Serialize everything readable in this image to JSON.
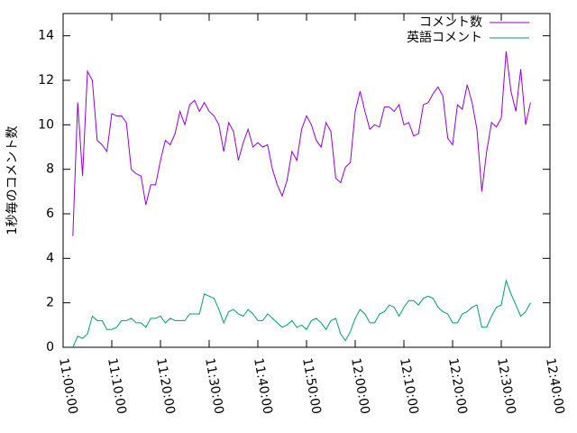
{
  "chart_data": {
    "type": "line",
    "ylabel": "1秒毎のコメント数",
    "x": [
      "11:02:00",
      "11:03:00",
      "11:04:00",
      "11:05:00",
      "11:06:00",
      "11:07:00",
      "11:08:00",
      "11:09:00",
      "11:10:00",
      "11:11:00",
      "11:12:00",
      "11:13:00",
      "11:14:00",
      "11:15:00",
      "11:16:00",
      "11:17:00",
      "11:18:00",
      "11:19:00",
      "11:20:00",
      "11:21:00",
      "11:22:00",
      "11:23:00",
      "11:24:00",
      "11:25:00",
      "11:26:00",
      "11:27:00",
      "11:28:00",
      "11:29:00",
      "11:30:00",
      "11:31:00",
      "11:32:00",
      "11:33:00",
      "11:34:00",
      "11:35:00",
      "11:36:00",
      "11:37:00",
      "11:38:00",
      "11:39:00",
      "11:40:00",
      "11:41:00",
      "11:42:00",
      "11:43:00",
      "11:44:00",
      "11:45:00",
      "11:46:00",
      "11:47:00",
      "11:48:00",
      "11:49:00",
      "11:50:00",
      "11:51:00",
      "11:52:00",
      "11:53:00",
      "11:54:00",
      "11:55:00",
      "11:56:00",
      "11:57:00",
      "11:58:00",
      "11:59:00",
      "12:00:00",
      "12:01:00",
      "12:02:00",
      "12:03:00",
      "12:04:00",
      "12:05:00",
      "12:06:00",
      "12:07:00",
      "12:08:00",
      "12:09:00",
      "12:10:00",
      "12:11:00",
      "12:12:00",
      "12:13:00",
      "12:14:00",
      "12:15:00",
      "12:16:00",
      "12:17:00",
      "12:18:00",
      "12:19:00",
      "12:20:00",
      "12:21:00",
      "12:22:00",
      "12:23:00",
      "12:24:00",
      "12:25:00",
      "12:26:00",
      "12:27:00",
      "12:28:00",
      "12:29:00",
      "12:30:00",
      "12:31:00",
      "12:32:00",
      "12:33:00",
      "12:34:00",
      "12:35:00",
      "12:36:00"
    ],
    "series": [
      {
        "name": "コメント数",
        "color": "#9400d3",
        "values": [
          5.0,
          11.0,
          7.7,
          12.4,
          12.0,
          9.3,
          9.1,
          8.8,
          10.5,
          10.4,
          10.4,
          10.1,
          8.0,
          7.8,
          7.7,
          6.4,
          7.3,
          7.3,
          8.4,
          9.3,
          9.1,
          9.6,
          10.6,
          10.0,
          10.9,
          11.1,
          10.6,
          11.0,
          10.6,
          10.4,
          10.0,
          8.8,
          10.1,
          9.7,
          8.4,
          9.2,
          9.8,
          9.0,
          9.2,
          9.0,
          9.1,
          8.0,
          7.3,
          6.8,
          7.5,
          8.8,
          8.4,
          9.8,
          10.4,
          10.0,
          9.3,
          9.0,
          10.1,
          9.7,
          7.6,
          7.4,
          8.1,
          8.3,
          10.6,
          11.5,
          10.6,
          9.8,
          10.0,
          9.9,
          10.8,
          10.8,
          10.6,
          10.9,
          10.0,
          10.1,
          9.5,
          9.6,
          10.9,
          11.0,
          11.4,
          11.7,
          11.3,
          9.4,
          9.1,
          10.9,
          10.7,
          11.8,
          11.0,
          9.8,
          7.0,
          8.8,
          10.1,
          9.9,
          10.3,
          13.3,
          11.5,
          10.6,
          12.5,
          10.0,
          11.0
        ]
      },
      {
        "name": "英語コメント",
        "color": "#009e73",
        "values": [
          0.0,
          0.5,
          0.4,
          0.6,
          1.4,
          1.2,
          1.2,
          0.8,
          0.8,
          0.9,
          1.2,
          1.2,
          1.3,
          1.1,
          1.1,
          0.9,
          1.3,
          1.3,
          1.4,
          1.1,
          1.3,
          1.2,
          1.2,
          1.2,
          1.5,
          1.5,
          1.5,
          2.4,
          2.3,
          2.2,
          1.7,
          1.1,
          1.6,
          1.7,
          1.5,
          1.4,
          1.7,
          1.5,
          1.2,
          1.2,
          1.5,
          1.3,
          1.1,
          0.9,
          1.0,
          1.2,
          0.9,
          1.0,
          0.8,
          1.2,
          1.3,
          1.1,
          0.8,
          1.2,
          1.3,
          0.6,
          0.3,
          0.7,
          1.3,
          1.7,
          1.5,
          1.1,
          1.1,
          1.5,
          1.6,
          1.9,
          1.8,
          1.4,
          1.8,
          2.1,
          2.1,
          1.9,
          2.2,
          2.3,
          2.2,
          1.8,
          1.6,
          1.5,
          1.1,
          1.1,
          1.5,
          1.6,
          1.8,
          1.9,
          0.9,
          0.9,
          1.4,
          1.8,
          1.9,
          3.0,
          2.4,
          1.9,
          1.4,
          1.6,
          2.0
        ]
      }
    ],
    "xlim": [
      "11:00:00",
      "12:40:00"
    ],
    "xticks": [
      "11:00:00",
      "11:10:00",
      "11:20:00",
      "11:30:00",
      "11:40:00",
      "11:50:00",
      "12:00:00",
      "12:10:00",
      "12:20:00",
      "12:30:00",
      "12:40:00"
    ],
    "ylim": [
      0,
      15
    ],
    "yticks": [
      0,
      2,
      4,
      6,
      8,
      10,
      12,
      14
    ],
    "legend": "top-right"
  }
}
